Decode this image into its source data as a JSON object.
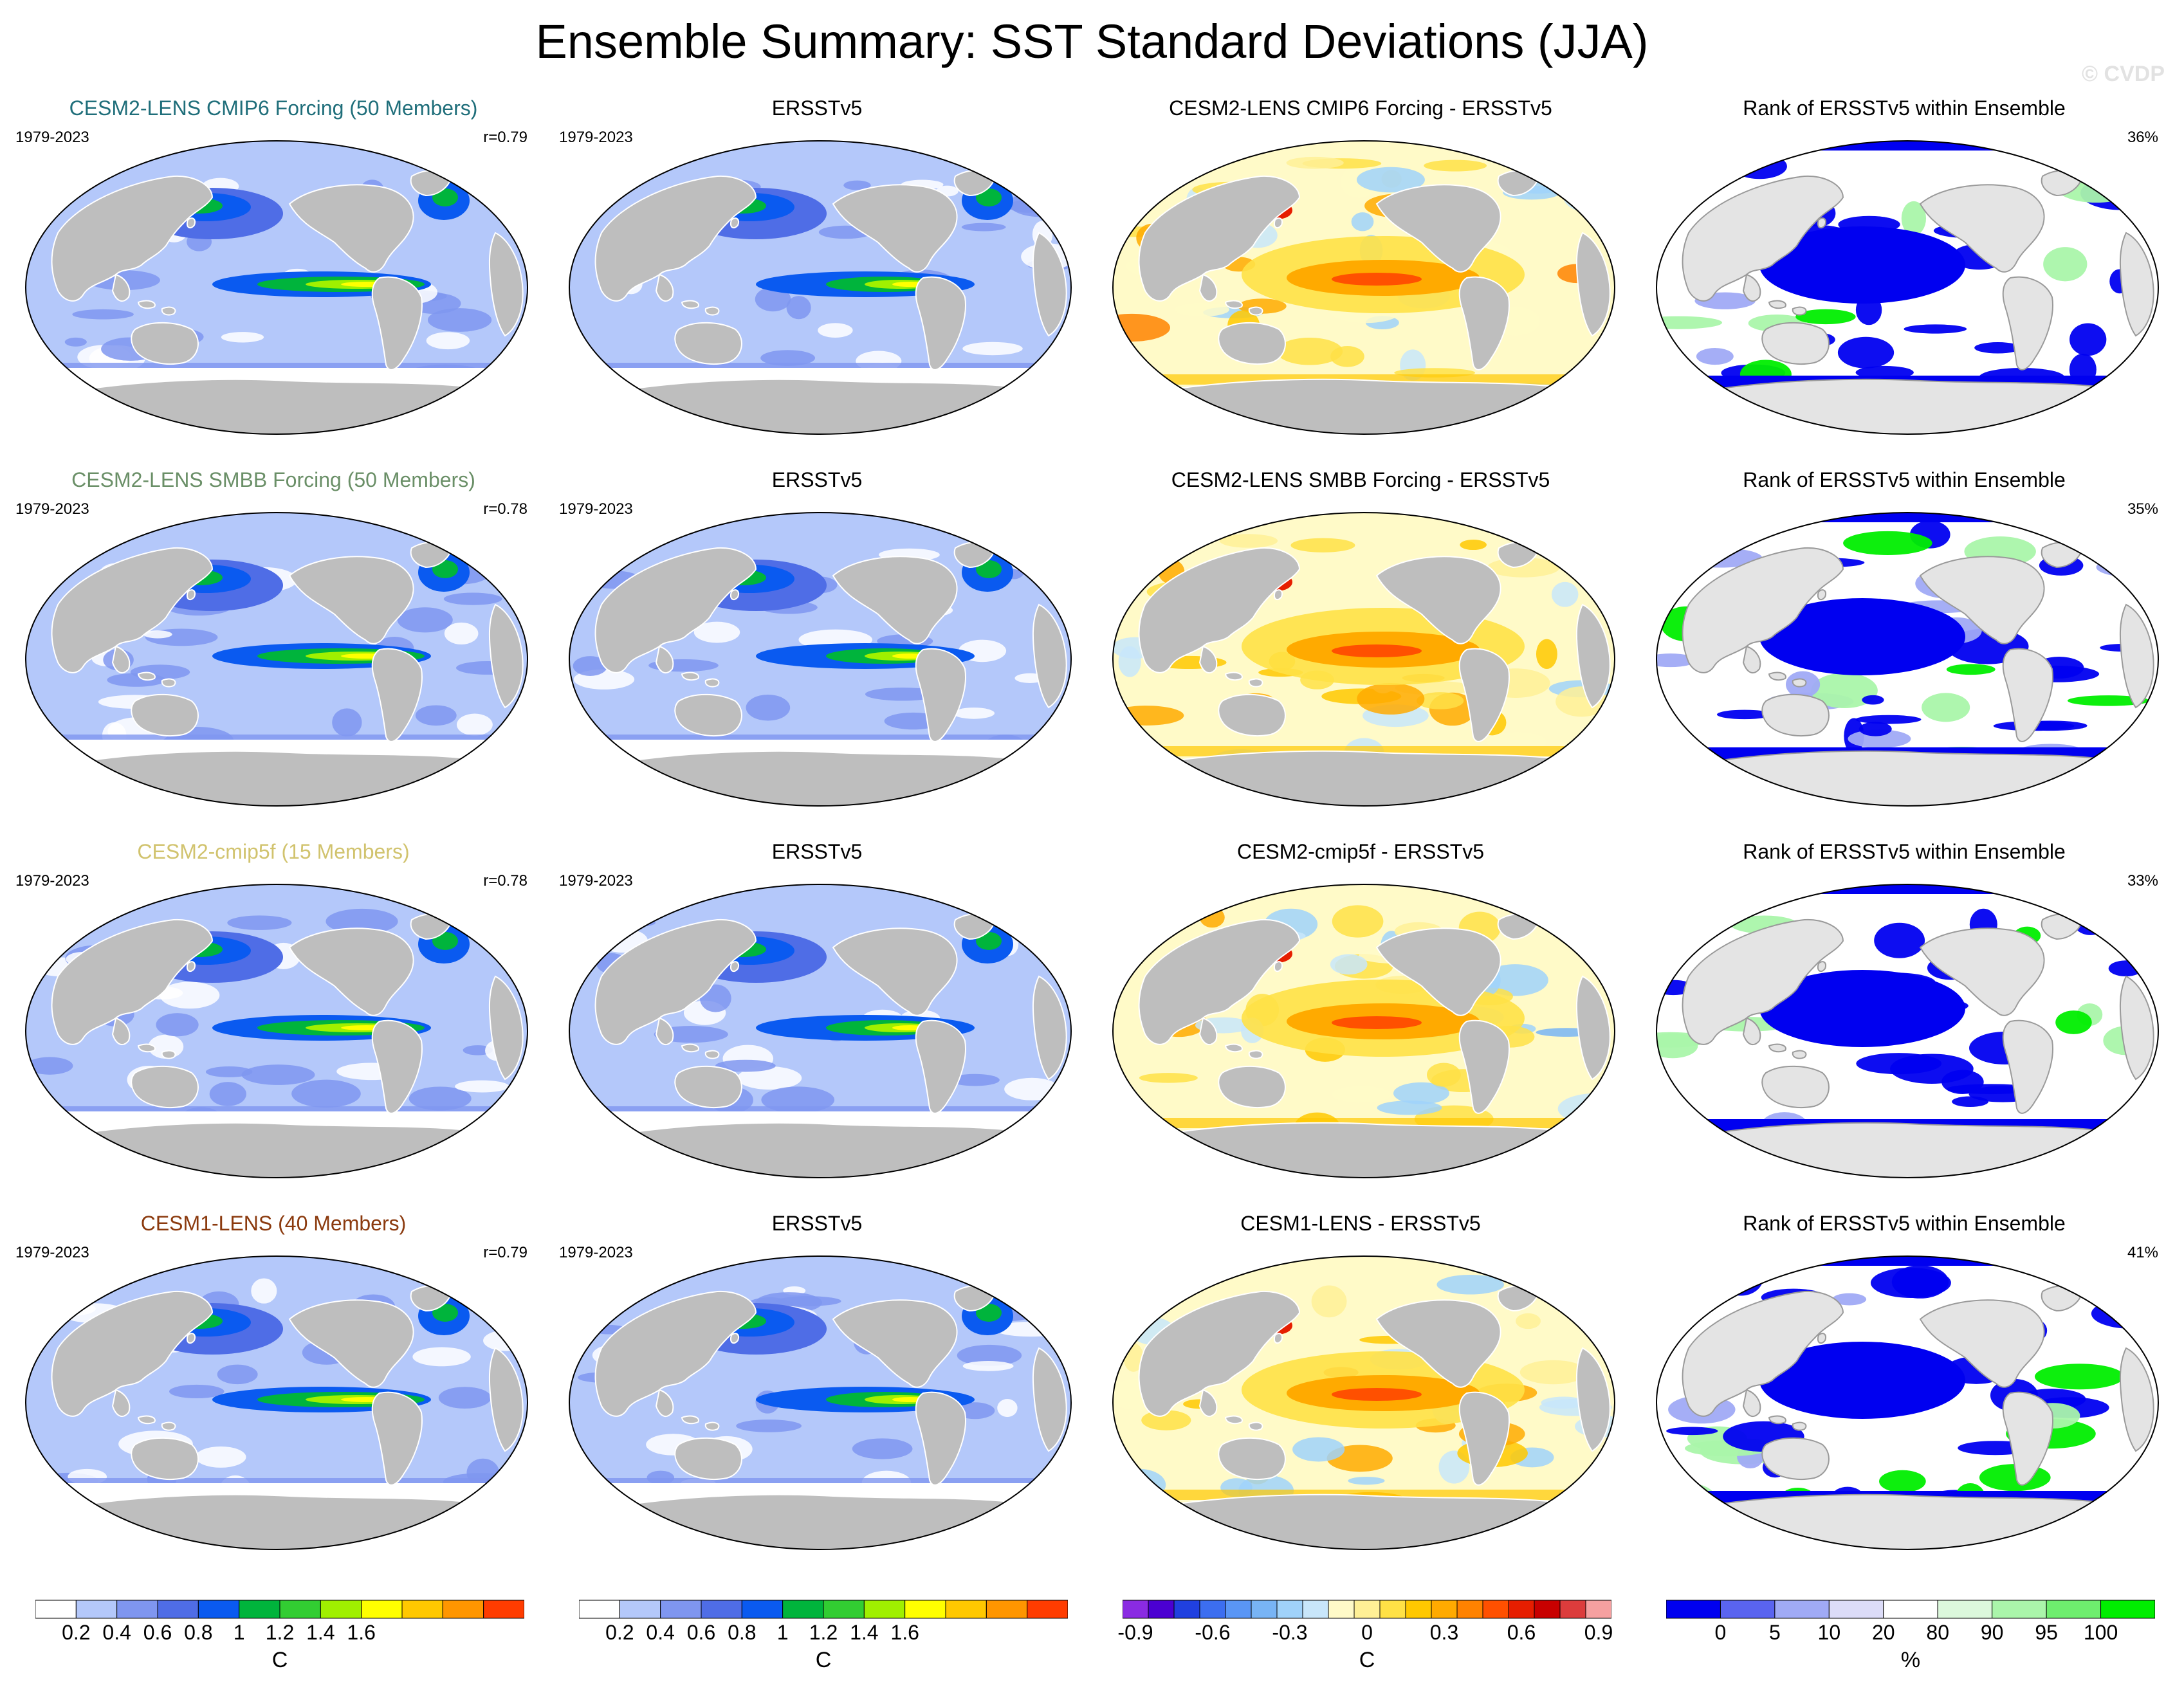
{
  "title": "Ensemble Summary: SST Standard Deviations (JJA)",
  "copyright": "© CVDP",
  "colors": {
    "land": "#bebebe",
    "coast": "#ffffff",
    "model1": "#1f6e7a",
    "model2": "#6a8f67",
    "model3": "#d1c36e",
    "model4": "#8b3a0e",
    "std_palette": [
      "#ffffff",
      "#b4c8fa",
      "#7f96f0",
      "#4f6de6",
      "#0a5af0",
      "#00b43c",
      "#32cd32",
      "#a0f000",
      "#ffff00",
      "#ffc800",
      "#ff9600",
      "#ff3c00"
    ],
    "diff_palette": [
      "#8a2be2",
      "#4b00d2",
      "#2040e0",
      "#3c6ef0",
      "#5a96f5",
      "#78b4f5",
      "#a0d2fa",
      "#c8e6fa",
      "#fffac8",
      "#fff096",
      "#ffe146",
      "#ffc800",
      "#ffaa00",
      "#ff8200",
      "#ff5000",
      "#e61e00",
      "#c80000",
      "#dc3c3c",
      "#f5a0a0"
    ],
    "rank_palette": [
      "#0000f0",
      "#5a64f0",
      "#a0aaf5",
      "#dcdcf8",
      "#ffffff",
      "#dcf8dc",
      "#aaf5aa",
      "#6eee6e",
      "#00ee00"
    ]
  },
  "rows": [
    {
      "model_title": "CESM2-LENS CMIP6 Forcing (50 Members)",
      "model_color": "#1f6e7a",
      "period": "1979-2023",
      "corr": "r=0.79",
      "obs_title": "ERSSTv5",
      "obs_period": "1979-2023",
      "diff_title": "CESM2-LENS CMIP6 Forcing - ERSSTv5",
      "rank_title": "Rank of ERSSTv5 within Ensemble",
      "rank_pct": "36%"
    },
    {
      "model_title": "CESM2-LENS SMBB Forcing (50 Members)",
      "model_color": "#6a8f67",
      "period": "1979-2023",
      "corr": "r=0.78",
      "obs_title": "ERSSTv5",
      "obs_period": "1979-2023",
      "diff_title": "CESM2-LENS SMBB Forcing - ERSSTv5",
      "rank_title": "Rank of ERSSTv5 within Ensemble",
      "rank_pct": "35%"
    },
    {
      "model_title": "CESM2-cmip5f (15 Members)",
      "model_color": "#d1c36e",
      "period": "1979-2023",
      "corr": "r=0.78",
      "obs_title": "ERSSTv5",
      "obs_period": "1979-2023",
      "diff_title": "CESM2-cmip5f - ERSSTv5",
      "rank_title": "Rank of ERSSTv5 within Ensemble",
      "rank_pct": "33%"
    },
    {
      "model_title": "CESM1-LENS (40 Members)",
      "model_color": "#8b3a0e",
      "period": "1979-2023",
      "corr": "r=0.79",
      "obs_title": "ERSSTv5",
      "obs_period": "1979-2023",
      "diff_title": "CESM1-LENS - ERSSTv5",
      "rank_title": "Rank of ERSSTv5 within Ensemble",
      "rank_pct": "41%"
    }
  ],
  "colorbars": [
    {
      "units": "C",
      "ticks": [
        "0.2",
        "0.4",
        "0.6",
        "0.8",
        "1",
        "1.2",
        "1.4",
        "1.6"
      ],
      "palette": "std_palette"
    },
    {
      "units": "C",
      "ticks": [
        "0.2",
        "0.4",
        "0.6",
        "0.8",
        "1",
        "1.2",
        "1.4",
        "1.6"
      ],
      "palette": "std_palette"
    },
    {
      "units": "C",
      "ticks": [
        "-0.9",
        "-0.6",
        "-0.3",
        "0",
        "0.3",
        "0.6",
        "0.9"
      ],
      "palette": "diff_palette"
    },
    {
      "units": "%",
      "ticks": [
        "0",
        "5",
        "10",
        "20",
        "80",
        "90",
        "95",
        "100"
      ],
      "palette": "rank_palette"
    }
  ]
}
